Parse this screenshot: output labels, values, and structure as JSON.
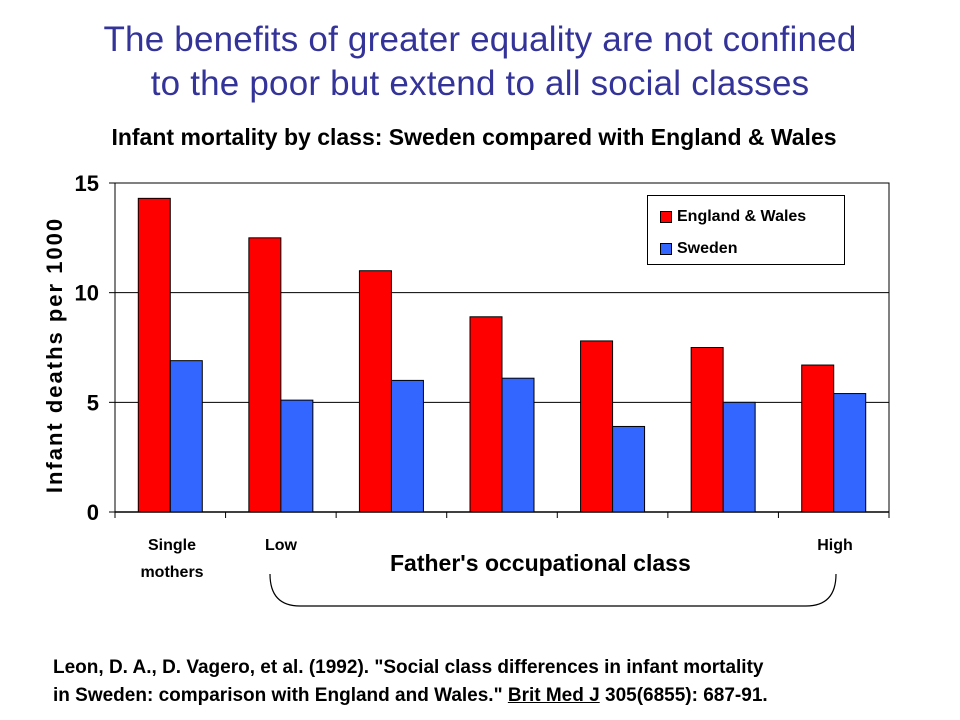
{
  "headline": {
    "line1": "The benefits of greater equality are not confined",
    "line2": "to the poor but extend to all social classes"
  },
  "chart_data": {
    "type": "bar",
    "title": "Infant mortality by class: Sweden compared with England & Wales",
    "ylabel": "Infant deaths per 1000",
    "xlabel": "Father's occupational class",
    "ylim": [
      0,
      15
    ],
    "yticks": [
      "0",
      "5",
      "10",
      "15"
    ],
    "grid": true,
    "legend_position": "top-right",
    "categories": [
      "Single mothers",
      "Low",
      "",
      "",
      "",
      "",
      "High"
    ],
    "series": [
      {
        "name": "England & Wales",
        "color": "#ff0000",
        "values": [
          14.3,
          12.5,
          11.0,
          8.9,
          7.8,
          7.5,
          6.7
        ]
      },
      {
        "name": "Sweden",
        "color": "#3366ff",
        "values": [
          6.9,
          5.1,
          6.0,
          6.1,
          3.9,
          5.0,
          5.4
        ]
      }
    ]
  },
  "x_labels": {
    "single_line1": "Single",
    "single_line2": "mothers",
    "low": "Low",
    "high": "High"
  },
  "citation": {
    "line1": "Leon, D. A., D. Vagero, et al. (1992). \"Social class differences in infant mortality",
    "line2_a": "in Sweden: comparison with England and Wales.\" ",
    "line2_journal": "Brit Med J",
    "line2_b": " 305(6855): 687-91."
  }
}
